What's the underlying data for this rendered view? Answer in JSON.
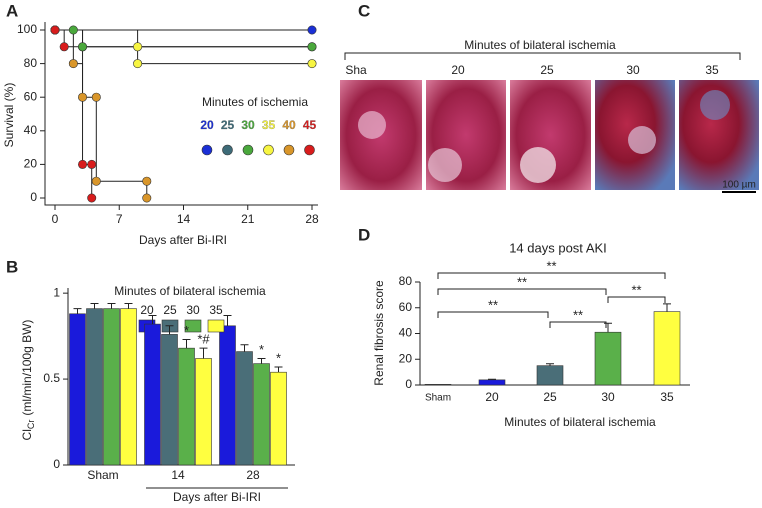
{
  "chart_data": [
    {
      "type": "step",
      "panel": "A",
      "xlabel": "Days after Bi-IRI",
      "ylabel": "Survival (%)",
      "xlim": [
        0,
        28
      ],
      "xticks": [
        0,
        7,
        14,
        21,
        28
      ],
      "ylim": [
        0,
        100
      ],
      "yticks": [
        0,
        20,
        40,
        60,
        80,
        100
      ],
      "legend_title": "Minutes of ischemia",
      "series": [
        {
          "name": "20",
          "color": "#1a2fd6",
          "x": [
            0,
            28
          ],
          "values": [
            100,
            100
          ]
        },
        {
          "name": "25",
          "color": "#3d6b78",
          "x": [
            0,
            3,
            28
          ],
          "values": [
            100,
            90,
            90
          ]
        },
        {
          "name": "30",
          "color": "#4aa83c",
          "x": [
            0,
            2,
            3,
            28
          ],
          "values": [
            100,
            100,
            90,
            90
          ]
        },
        {
          "name": "35",
          "color": "#f7f542",
          "x": [
            0,
            9,
            9,
            28
          ],
          "values": [
            100,
            90,
            80,
            80
          ]
        },
        {
          "name": "40",
          "color": "#d9962a",
          "x": [
            0,
            2,
            3,
            4.5,
            4.5,
            10,
            10
          ],
          "values": [
            100,
            80,
            60,
            60,
            10,
            10,
            0
          ]
        },
        {
          "name": "45",
          "color": "#d81c1c",
          "x": [
            0,
            1,
            3,
            4,
            4
          ],
          "values": [
            100,
            90,
            20,
            20,
            0
          ]
        }
      ]
    },
    {
      "type": "grouped_bar",
      "panel": "B",
      "ylabel": "Cl",
      "ylabel_sub": "Cr",
      "ylabel_unit": "(ml/min/100g BW)",
      "legend_title": "Minutes of bilateral ischemia",
      "group_label": "Days after Bi-IRI",
      "categories": [
        "Sham",
        "14",
        "28"
      ],
      "ylim": [
        0,
        1.03
      ],
      "yticks": [
        0,
        0.5,
        1
      ],
      "series": [
        {
          "name": "20",
          "color": "#1a1adb",
          "values": [
            0.88,
            0.82,
            0.81
          ],
          "errors": [
            0.03,
            0.05,
            0.06
          ]
        },
        {
          "name": "25",
          "color": "#4a6e78",
          "values": [
            0.91,
            0.76,
            0.66
          ],
          "errors": [
            0.03,
            0.05,
            0.04
          ]
        },
        {
          "name": "30",
          "color": "#5ab04a",
          "values": [
            0.91,
            0.68,
            0.59
          ],
          "errors": [
            0.03,
            0.05,
            0.03
          ]
        },
        {
          "name": "35",
          "color": "#ffff40",
          "values": [
            0.91,
            0.62,
            0.54
          ],
          "errors": [
            0.03,
            0.06,
            0.03
          ]
        }
      ],
      "annotations": [
        {
          "category": 1,
          "series": 2,
          "label": "*"
        },
        {
          "category": 1,
          "series": 3,
          "label": "*#"
        },
        {
          "category": 2,
          "series": 2,
          "label": "*"
        },
        {
          "category": 2,
          "series": 3,
          "label": "*"
        }
      ]
    },
    {
      "type": "bar",
      "panel": "D",
      "title": "14 days post AKI",
      "ylabel": "Renal fibrosis score",
      "xlabel": "Minutes of bilateral ischemia",
      "categories": [
        "Sham",
        "20",
        "25",
        "30",
        "35"
      ],
      "values": [
        0.5,
        4,
        15,
        41,
        57
      ],
      "errors": [
        0,
        0.5,
        1.5,
        7,
        6
      ],
      "colors": [
        "#222222",
        "#1a1adb",
        "#4a6e78",
        "#5ab04a",
        "#ffff40"
      ],
      "ylim": [
        0,
        80
      ],
      "yticks": [
        0,
        20,
        40,
        60,
        80
      ],
      "annotations": [
        {
          "pair": [
            0,
            2
          ],
          "label": "**"
        },
        {
          "pair": [
            2,
            3
          ],
          "label": "**"
        },
        {
          "pair": [
            3,
            4
          ],
          "label": "**"
        },
        {
          "pair": [
            0,
            3
          ],
          "label": "**"
        },
        {
          "pair": [
            0,
            4
          ],
          "label": "**"
        }
      ]
    }
  ],
  "panel_c": {
    "panel": "C",
    "header": "Minutes of bilateral ischemia",
    "labels": [
      "Sha",
      "20",
      "25",
      "30",
      "35"
    ],
    "scale_bar": "100 µm"
  }
}
